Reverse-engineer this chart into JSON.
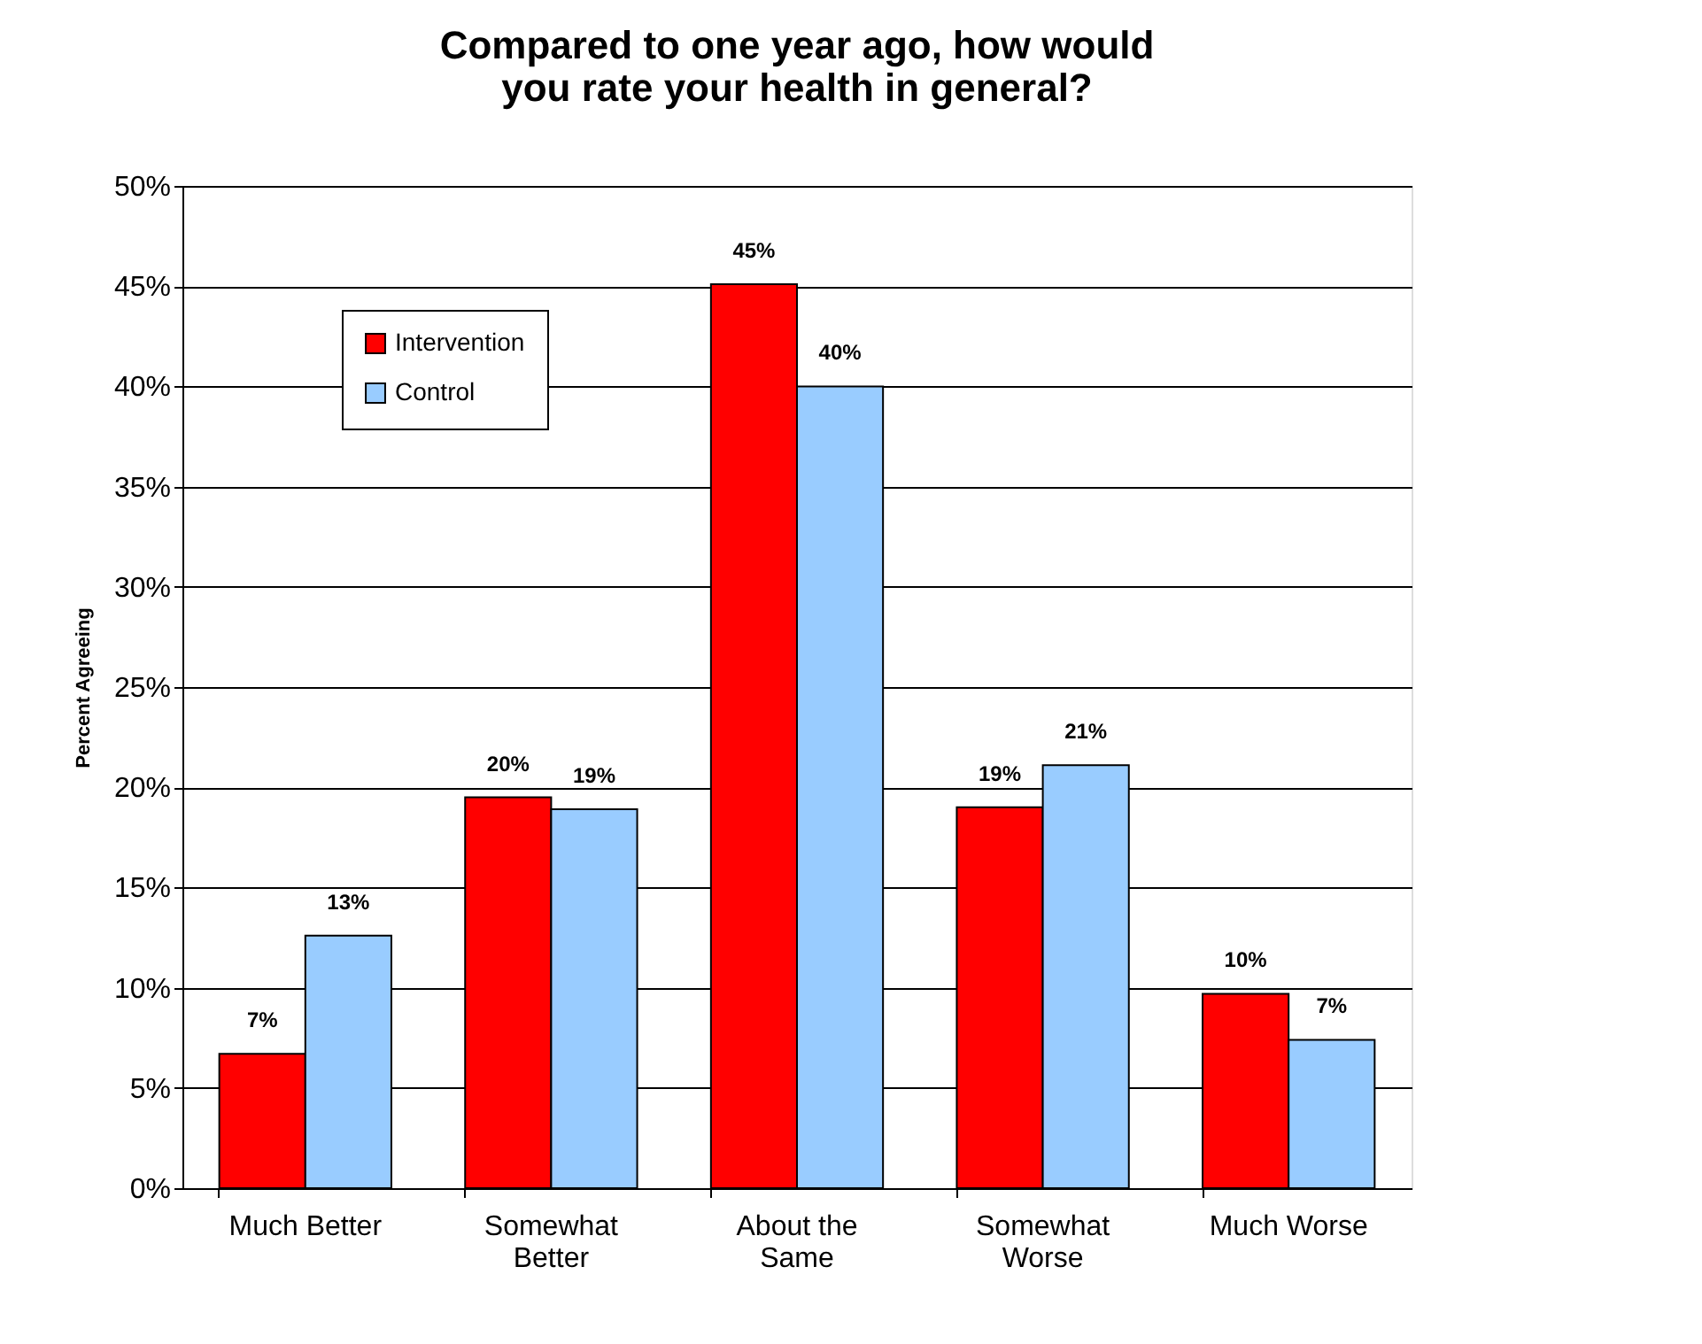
{
  "chart_data": {
    "type": "bar",
    "title": [
      "Compared to one year ago, how would",
      "you rate your health in general?"
    ],
    "ylabel": "Percent Agreeing",
    "categories": [
      "Much Better",
      "Somewhat Better",
      "About the Same",
      "Somewhat Worse",
      "Much Worse"
    ],
    "series": [
      {
        "name": "Intervention",
        "color": "#ff0000",
        "values": [
          6.7,
          19.5,
          45.1,
          19.0,
          9.7
        ],
        "value_labels": [
          "7%",
          "20%",
          "45%",
          "19%",
          "10%"
        ]
      },
      {
        "name": "Control",
        "color": "#99ccff",
        "values": [
          12.6,
          18.9,
          40.0,
          21.1,
          7.4
        ],
        "value_labels": [
          "13%",
          "19%",
          "40%",
          "21%",
          "7%"
        ]
      }
    ],
    "ylim": [
      0,
      50
    ],
    "yticks": [
      {
        "value": 0,
        "label": "0%"
      },
      {
        "value": 5,
        "label": "5%"
      },
      {
        "value": 10,
        "label": "10%"
      },
      {
        "value": 15,
        "label": "15%"
      },
      {
        "value": 20,
        "label": "20%"
      },
      {
        "value": 25,
        "label": "25%"
      },
      {
        "value": 30,
        "label": "30%"
      },
      {
        "value": 35,
        "label": "35%"
      },
      {
        "value": 40,
        "label": "40%"
      },
      {
        "value": 45,
        "label": "45%"
      },
      {
        "value": 50,
        "label": "50%"
      }
    ],
    "grid": "y",
    "legend": "top left"
  }
}
